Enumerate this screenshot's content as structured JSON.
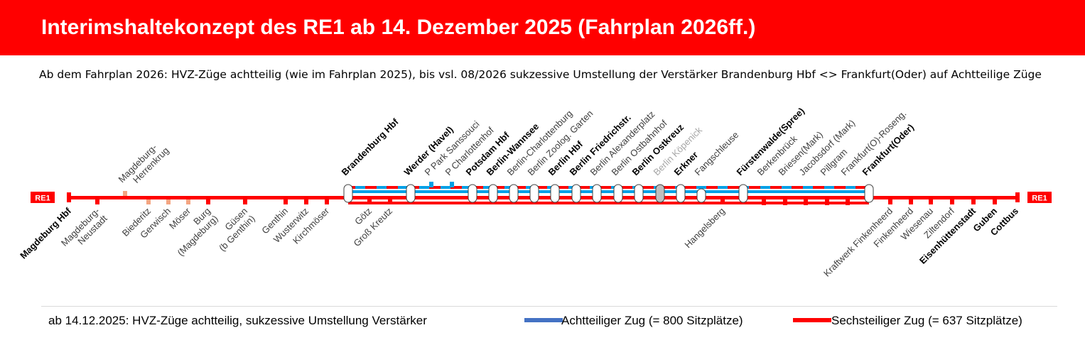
{
  "header": {
    "title": "Interimshaltekonzept des RE1 ab 14. Dezember 2025 (Fahrplan 2026ff.)",
    "subtitle": "Ab dem Fahrplan 2026: HVZ-Züge achtteilig (wie im Fahrplan 2025), bis vsl. 08/2026 sukzessive Umstellung der Verstärker Brandenburg Hbf <> Frankfurt(Oder) auf Achtteilige Züge"
  },
  "line": {
    "badge": "RE1",
    "color": "#ff0000",
    "eight_car_color": "#00a0e6",
    "grey_color": "#a6a6a6"
  },
  "stations_below": [
    {
      "name": "Magdeburg Hbf",
      "bold": true
    },
    {
      "name": "Magdeburg-",
      "name2": "Neustadt"
    },
    {
      "name": "Biederitz"
    },
    {
      "name": "Gerwisch"
    },
    {
      "name": "Möser"
    },
    {
      "name": "Burg",
      "name2": "(Magdeburg)"
    },
    {
      "name": "Güsen",
      "name2": "(b Genthin)"
    },
    {
      "name": "Genthin"
    },
    {
      "name": "Wusterwitz"
    },
    {
      "name": "Kirchmöser"
    },
    {
      "name": "Götz"
    },
    {
      "name": "Groß Kreutz"
    },
    {
      "name": "Hangelsberg"
    },
    {
      "name": "Kraftwerk Finkenheerd"
    },
    {
      "name": "Finkenheerd"
    },
    {
      "name": "Wiesenau"
    },
    {
      "name": "Ziltendorf"
    },
    {
      "name": "Eisenhüttenstadt",
      "bold": true
    },
    {
      "name": "Guben",
      "bold": true
    },
    {
      "name": "Cottbus",
      "bold": true
    }
  ],
  "stations_above": [
    {
      "name": "Magdeburg-",
      "name2": "Herrenkrug"
    },
    {
      "name": "Brandenburg Hbf",
      "bold": true
    },
    {
      "name": "Werder (Havel)",
      "bold": true
    },
    {
      "name": "P Park Sanssouci"
    },
    {
      "name": "P Charlottenhof"
    },
    {
      "name": "Potsdam Hbf",
      "bold": true
    },
    {
      "name": "Berlin-Wannsee",
      "bold": true
    },
    {
      "name": "Berlin-Charlottenburg"
    },
    {
      "name": "Berlin Zoolog. Garten"
    },
    {
      "name": "Berlin Hbf",
      "bold": true
    },
    {
      "name": "Berlin Friedrichstr.",
      "bold": true
    },
    {
      "name": "Berlin Alexanderplatz"
    },
    {
      "name": "Berlin Ostbahnhof"
    },
    {
      "name": "Berlin Ostkreuz",
      "bold": true
    },
    {
      "name": "Berlin Köpenick",
      "grey": true
    },
    {
      "name": "Erkner",
      "bold": true
    },
    {
      "name": "Fangschleuse"
    },
    {
      "name": "Fürstenwalde(Spree)",
      "bold": true
    },
    {
      "name": "Berkenbrück"
    },
    {
      "name": "Briesen(Mark)"
    },
    {
      "name": "Jacobsdorf (Mark)"
    },
    {
      "name": "Pillgram"
    },
    {
      "name": "Frankfurt(O)-Roseng."
    },
    {
      "name": "Frankfurt(Oder)",
      "bold": true
    }
  ],
  "footer": {
    "note": "ab 14.12.2025: HVZ-Züge achtteilig, sukzessive Umstellung Verstärker",
    "legend": [
      {
        "label": "Achtteiliger Zug (= 800 Sitzplätze)",
        "color": "#4472c4"
      },
      {
        "label": "Sechsteiliger Zug (= 637 Sitzplätze)",
        "color": "#ff0000"
      }
    ]
  }
}
